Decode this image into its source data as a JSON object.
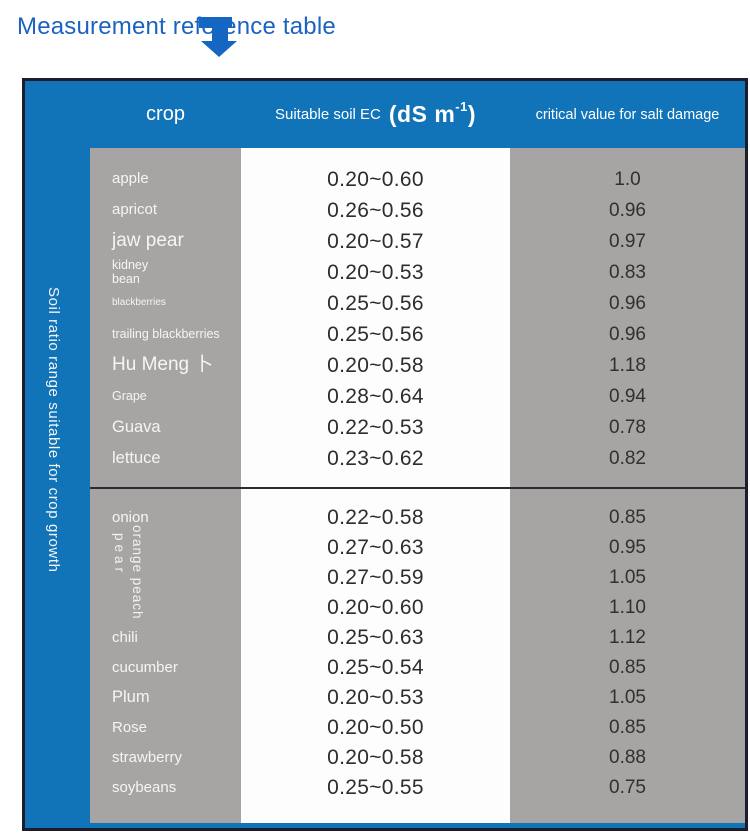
{
  "page": {
    "title": "Measurement reference table"
  },
  "colors": {
    "table_blue": "#1173b8",
    "title_blue": "#1c63c1",
    "cell_gray": "#a6a5a3",
    "border_dark": "#1c1c2a"
  },
  "icons": {
    "arrow": "arrow-down-icon"
  },
  "chart_data": {
    "type": "table",
    "title": "Measurement reference table",
    "side_label": "Soil ratio range suitable for crop growth",
    "columns": [
      "crop",
      "Suitable soil EC (dS m-1)",
      "critical value for salt damage"
    ],
    "header": {
      "crop": "crop",
      "ec_label": "Suitable soil EC",
      "ec_unit_open": "(dS m",
      "ec_unit_sup": "-1",
      "ec_unit_close": ")",
      "critical": "critical value for salt damage"
    },
    "sections": [
      {
        "rows": [
          {
            "crop": "apple",
            "ec": "0.20~0.60",
            "critical": "1.0"
          },
          {
            "crop": "apricot",
            "ec": "0.26~0.56",
            "critical": "0.96"
          },
          {
            "crop": "jaw pear",
            "ec": "0.20~0.57",
            "critical": "0.97"
          },
          {
            "crop": "kidney bean",
            "ec": "0.20~0.53",
            "critical": "0.83"
          },
          {
            "crop": "blackberries",
            "ec": "0.25~0.56",
            "critical": "0.96"
          },
          {
            "crop": "trailing blackberries",
            "ec": "0.25~0.56",
            "critical": "0.96"
          },
          {
            "crop": "Hu Meng 卜",
            "ec": "0.20~0.58",
            "critical": "1.18"
          },
          {
            "crop": "Grape",
            "ec": "0.28~0.64",
            "critical": "0.94"
          },
          {
            "crop": "Guava",
            "ec": "0.22~0.53",
            "critical": "0.78"
          },
          {
            "crop": "lettuce",
            "ec": "0.23~0.62",
            "critical": "0.82"
          }
        ]
      },
      {
        "rows": [
          {
            "crop": "onion",
            "ec": "0.22~0.58",
            "critical": "0.85"
          },
          {
            "crop": "",
            "ec": "0.27~0.63",
            "critical": "0.95"
          },
          {
            "crop": "",
            "ec": "0.27~0.59",
            "critical": "1.05"
          },
          {
            "crop": "",
            "ec": "0.20~0.60",
            "critical": "1.10"
          },
          {
            "crop": "chili",
            "ec": "0.25~0.63",
            "critical": "1.12"
          },
          {
            "crop": "cucumber",
            "ec": "0.25~0.54",
            "critical": "0.85"
          },
          {
            "crop": "Plum",
            "ec": "0.20~0.53",
            "critical": "1.05"
          },
          {
            "crop": "Rose",
            "ec": "0.20~0.50",
            "critical": "0.85"
          },
          {
            "crop": "strawberry",
            "ec": "0.20~0.58",
            "critical": "0.88"
          },
          {
            "crop": "soybeans",
            "ec": "0.25~0.55",
            "critical": "0.75"
          }
        ],
        "rotated_crop_labels": [
          {
            "text": "orange peach"
          },
          {
            "text": "pear"
          }
        ]
      }
    ]
  }
}
